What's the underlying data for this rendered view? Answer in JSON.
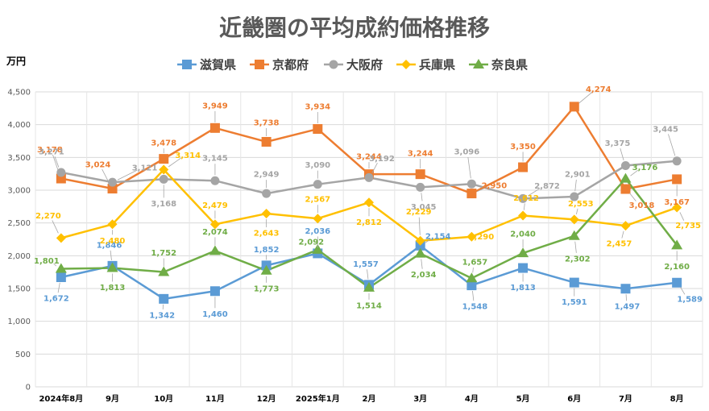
{
  "chart_data": {
    "type": "line",
    "title": "近畿圏の平均成約価格推移",
    "ylabel": "万円",
    "xlabel": "",
    "ylim": [
      0,
      4500
    ],
    "yticks": [
      0,
      500,
      1000,
      1500,
      2000,
      2500,
      3000,
      3500,
      4000,
      4500
    ],
    "ytick_labels": [
      "0",
      "500",
      "1,000",
      "1,500",
      "2,000",
      "2,500",
      "3,000",
      "3,500",
      "4,000",
      "4,500"
    ],
    "grid": true,
    "legend_position": "top",
    "categories": [
      "2024年8月",
      "9月",
      "10月",
      "11月",
      "12月",
      "2025年1月",
      "2月",
      "3月",
      "4月",
      "5月",
      "6月",
      "7月",
      "8月"
    ],
    "series": [
      {
        "name": "滋賀県",
        "color": "#5b9bd5",
        "marker": "square",
        "values": [
          1672,
          1846,
          1342,
          1460,
          1852,
          2036,
          1557,
          2154,
          1548,
          1813,
          1591,
          1497,
          1589
        ],
        "labels": [
          "1,672",
          "1,846",
          "1,342",
          "1,460",
          "1,852",
          "2,036",
          "1,557",
          "2,154",
          "1,548",
          "1,813",
          "1,591",
          "1,497",
          "1,589"
        ]
      },
      {
        "name": "京都府",
        "color": "#ed7d31",
        "marker": "square",
        "values": [
          3178,
          3024,
          3478,
          3949,
          3738,
          3934,
          3244,
          3244,
          2950,
          3350,
          4274,
          3018,
          3167
        ],
        "labels": [
          "3,178",
          "3,024",
          "3,478",
          "3,949",
          "3,738",
          "3,934",
          "3,244",
          "3,244",
          "2,950",
          "3,350",
          "4,274",
          "3,018",
          "3,167"
        ]
      },
      {
        "name": "大阪府",
        "color": "#a5a5a5",
        "marker": "circle",
        "values": [
          3271,
          3121,
          3168,
          3145,
          2949,
          3090,
          3192,
          3045,
          3096,
          2872,
          2901,
          3375,
          3445
        ],
        "labels": [
          "3,271",
          "3,121",
          "3,168",
          "3,145",
          "2,949",
          "3,090",
          "3,192",
          "3,045",
          "3,096",
          "2,872",
          "2,901",
          "3,375",
          "3,445"
        ]
      },
      {
        "name": "兵庫県",
        "color": "#ffc000",
        "marker": "diamond",
        "values": [
          2270,
          2480,
          3314,
          2479,
          2643,
          2567,
          2812,
          2229,
          2290,
          2612,
          2553,
          2457,
          2735
        ],
        "labels": [
          "2,270",
          "2,480",
          "3,314",
          "2,479",
          "2,643",
          "2,567",
          "2,812",
          "2,229",
          "2,290",
          "2,612",
          "2,553",
          "2,457",
          "2,735"
        ]
      },
      {
        "name": "奈良県",
        "color": "#70ad47",
        "marker": "triangle",
        "values": [
          1801,
          1813,
          1752,
          2074,
          1773,
          2092,
          1514,
          2034,
          1657,
          2040,
          2302,
          3176,
          2160
        ],
        "labels": [
          "1,801",
          "1,813",
          "1,752",
          "2,074",
          "1,773",
          "2,092",
          "1,514",
          "2,034",
          "1,657",
          "2,040",
          "2,302",
          "3,176",
          "2,160"
        ]
      }
    ]
  }
}
